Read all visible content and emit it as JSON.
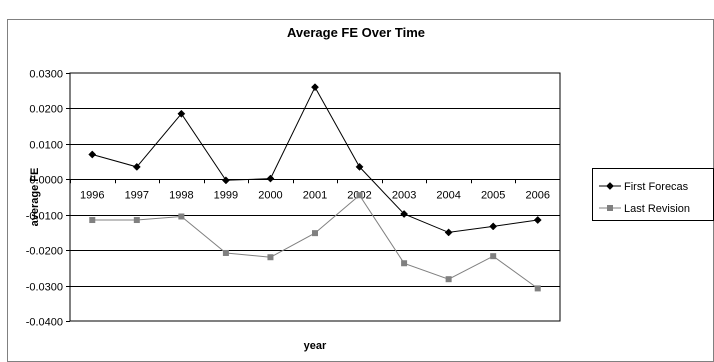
{
  "chart_data": {
    "type": "line",
    "title": "Average FE Over Time",
    "xlabel": "year",
    "ylabel": "average FE",
    "categories": [
      "1996",
      "1997",
      "1998",
      "1999",
      "2000",
      "2001",
      "2002",
      "2003",
      "2004",
      "2005",
      "2006"
    ],
    "y_ticks": [
      "0.0300",
      "0.0200",
      "0.0100",
      "0.0000",
      "-0.0100",
      "-0.0200",
      "-0.0300",
      "-0.0400"
    ],
    "ylim": [
      -0.04,
      0.03
    ],
    "grid": true,
    "legend_position": "right",
    "series": [
      {
        "name": "First Forecast",
        "legend_label": "First Forecas",
        "color": "#000000",
        "marker": "diamond",
        "values": [
          0.007,
          0.0035,
          0.0185,
          -0.0003,
          0.0002,
          0.026,
          0.0035,
          -0.0098,
          -0.015,
          -0.0133,
          -0.0115
        ]
      },
      {
        "name": "Last Revision",
        "legend_label": "Last Revision",
        "color": "#808080",
        "marker": "square",
        "values": [
          -0.0115,
          -0.0115,
          -0.0105,
          -0.0208,
          -0.022,
          -0.0152,
          -0.0045,
          -0.0237,
          -0.0282,
          -0.0217,
          -0.0308
        ]
      }
    ]
  }
}
